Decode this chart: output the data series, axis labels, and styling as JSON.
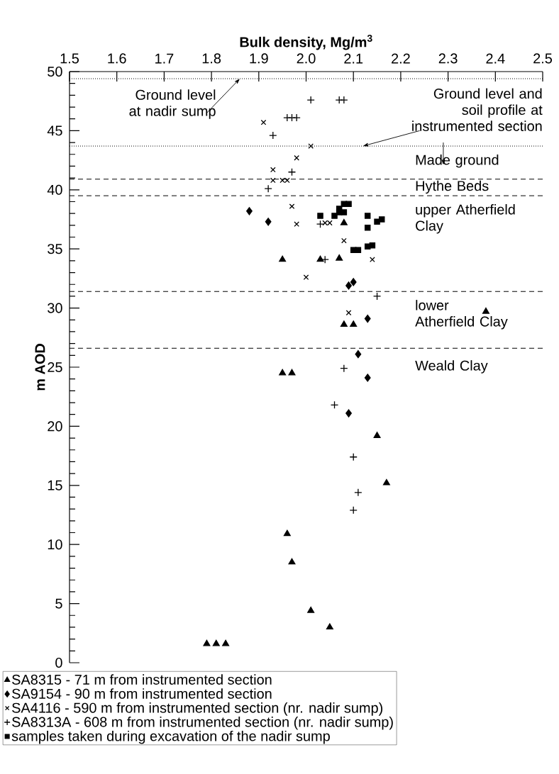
{
  "chart_data": {
    "type": "scatter",
    "xlabel": "Bulk density, Mg/m$^{3}$",
    "ylabel": "m AOD",
    "xlim": [
      1.5,
      2.5
    ],
    "ylim": [
      0,
      50
    ],
    "xticks": [
      1.5,
      1.6,
      1.7,
      1.8,
      1.9,
      {
        "value": 2.0,
        "label": "2.0"
      },
      2.1,
      2.2,
      2.3,
      2.4,
      2.5
    ],
    "yticks": [
      0,
      5,
      10,
      15,
      20,
      25,
      30,
      35,
      40,
      45,
      50
    ],
    "grid": false,
    "legend": "bottom",
    "series": [
      {
        "name": "SA8315 - 71 m from instrumented section",
        "color": "#000000",
        "marker": "triangle",
        "x": [
          2.08,
          1.95,
          2.03,
          2.07,
          2.08,
          2.1,
          2.38,
          1.95,
          1.97,
          2.15,
          2.17,
          1.96,
          1.97,
          2.01,
          2.05,
          1.79,
          1.81,
          1.83
        ],
        "values": [
          37.2,
          34.1,
          34.1,
          34.2,
          28.6,
          28.6,
          29.7,
          24.5,
          24.5,
          19.2,
          15.2,
          10.9,
          8.5,
          4.4,
          3.0,
          1.6,
          1.6,
          1.6
        ]
      },
      {
        "name": "SA9154 - 90 m from instrumented section",
        "color": "#000000",
        "marker": "diamond",
        "x": [
          1.88,
          1.92,
          2.09,
          2.1,
          2.13,
          2.11,
          2.13,
          2.09
        ],
        "values": [
          38.2,
          37.3,
          31.9,
          32.2,
          29.1,
          26.1,
          24.1,
          21.1
        ]
      },
      {
        "name": "SA4116 - 590 m from instrumented section (nr. nadir sump)",
        "color": "#000000",
        "marker": "cross",
        "x": [
          1.91,
          2.01,
          1.98,
          1.93,
          1.93,
          1.95,
          1.96,
          1.97,
          1.98,
          2.04,
          2.05,
          2.08,
          2.14,
          2.0,
          2.09
        ],
        "values": [
          45.7,
          43.7,
          42.7,
          41.7,
          40.8,
          40.8,
          40.8,
          38.6,
          37.1,
          37.2,
          37.2,
          35.7,
          34.1,
          32.6,
          29.6
        ]
      },
      {
        "name": "SA8313A - 608 m from instrumented section (nr. nadir sump)",
        "color": "#000000",
        "marker": "plus",
        "x": [
          2.01,
          2.07,
          2.08,
          1.96,
          1.97,
          1.98,
          1.93,
          1.97,
          1.92,
          2.03,
          2.04,
          2.15,
          2.08,
          2.06,
          2.1,
          2.11,
          2.1
        ],
        "values": [
          47.6,
          47.6,
          47.6,
          46.1,
          46.1,
          46.1,
          44.6,
          41.5,
          40.1,
          37.1,
          34.1,
          31.0,
          24.9,
          21.8,
          17.4,
          14.4,
          12.9
        ]
      },
      {
        "name": "samples taken during excavation of the nadir sump",
        "color": "#000000",
        "marker": "square",
        "x": [
          2.03,
          2.06,
          2.08,
          2.09,
          2.07,
          2.07,
          2.08,
          2.13,
          2.13,
          2.15,
          2.16,
          2.1,
          2.11,
          2.13,
          2.14
        ],
        "values": [
          37.8,
          37.8,
          38.8,
          38.8,
          38.4,
          38.1,
          38.1,
          37.8,
          36.8,
          37.3,
          37.5,
          34.9,
          34.9,
          35.2,
          35.3
        ]
      }
    ],
    "ref_lines": [
      {
        "axis": "y",
        "value": 49.4,
        "line_style": "dotted"
      },
      {
        "axis": "y",
        "value": 43.7,
        "line_style": "dotted"
      },
      {
        "axis": "y",
        "value": 40.9,
        "line_style": "dashed"
      },
      {
        "axis": "y",
        "value": 39.5,
        "line_style": "dashed"
      },
      {
        "axis": "y",
        "value": 31.4,
        "line_style": "dashed"
      },
      {
        "axis": "y",
        "value": 26.6,
        "line_style": "dashed"
      }
    ],
    "annotations": [
      {
        "text": "Ground level at nadir sump",
        "x": 1.86,
        "y": 49.4
      },
      {
        "text": "Ground level and soil profile at instrumented section",
        "x": 2.12,
        "y": 43.7
      },
      "Made ground",
      "Hythe Beds",
      "upper Atherfield Clay",
      "lower Atherfield Clay",
      "Weald Clay"
    ]
  }
}
